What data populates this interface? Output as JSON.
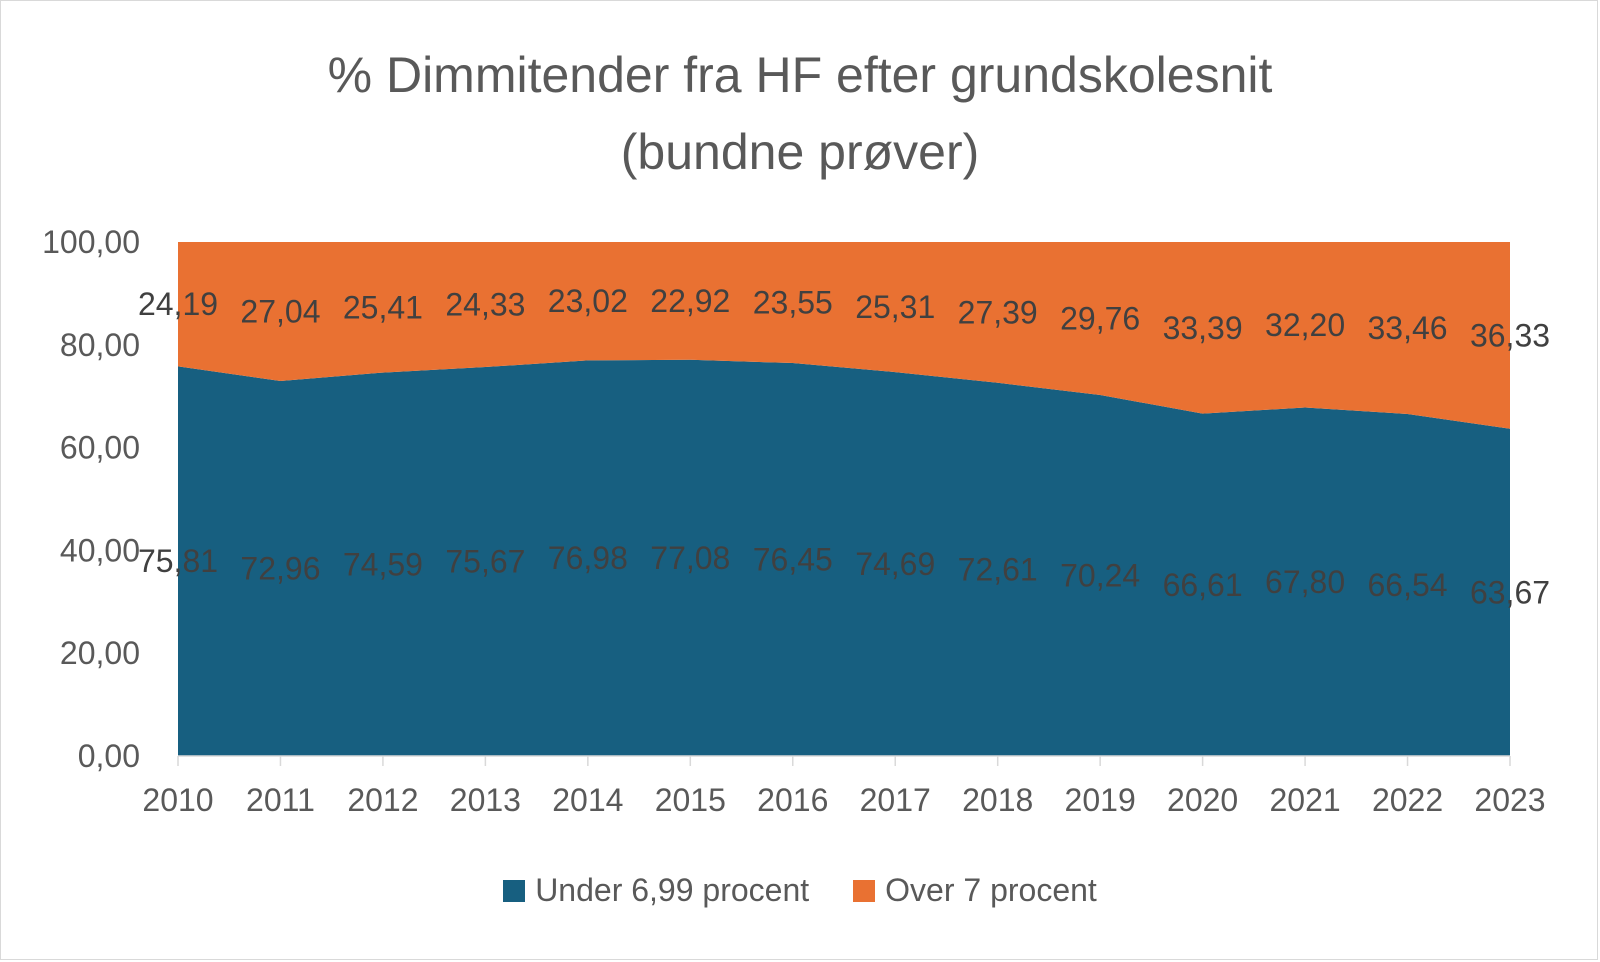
{
  "chart_data": {
    "type": "area",
    "stacked": true,
    "title_lines": [
      "% Dimmitender fra HF efter grundskolesnit",
      "(bundne prøver)"
    ],
    "categories": [
      "2010",
      "2011",
      "2012",
      "2013",
      "2014",
      "2015",
      "2016",
      "2017",
      "2018",
      "2019",
      "2020",
      "2021",
      "2022",
      "2023"
    ],
    "series": [
      {
        "name": "Under 6,99 procent",
        "color": "#175f80",
        "values": [
          75.81,
          72.96,
          74.59,
          75.67,
          76.98,
          77.08,
          76.45,
          74.69,
          72.61,
          70.24,
          66.61,
          67.8,
          66.54,
          63.67
        ],
        "labels": [
          "75,81",
          "72,96",
          "74,59",
          "75,67",
          "76,98",
          "77,08",
          "76,45",
          "74,69",
          "72,61",
          "70,24",
          "66,61",
          "67,80",
          "66,54",
          "63,67"
        ]
      },
      {
        "name": "Over 7 procent",
        "color": "#e97132",
        "values": [
          24.19,
          27.04,
          25.41,
          24.33,
          23.02,
          22.92,
          23.55,
          25.31,
          27.39,
          29.76,
          33.39,
          32.2,
          33.46,
          36.33
        ],
        "labels": [
          "24,19",
          "27,04",
          "25,41",
          "24,33",
          "23,02",
          "22,92",
          "23,55",
          "25,31",
          "27,39",
          "29,76",
          "33,39",
          "32,20",
          "33,46",
          "36,33"
        ]
      }
    ],
    "ylim": [
      0,
      100
    ],
    "yticks": [
      "0,00",
      "20,00",
      "40,00",
      "60,00",
      "80,00",
      "100,00"
    ],
    "xlabel": "",
    "ylabel": "",
    "legend_position": "bottom",
    "grid": false
  }
}
